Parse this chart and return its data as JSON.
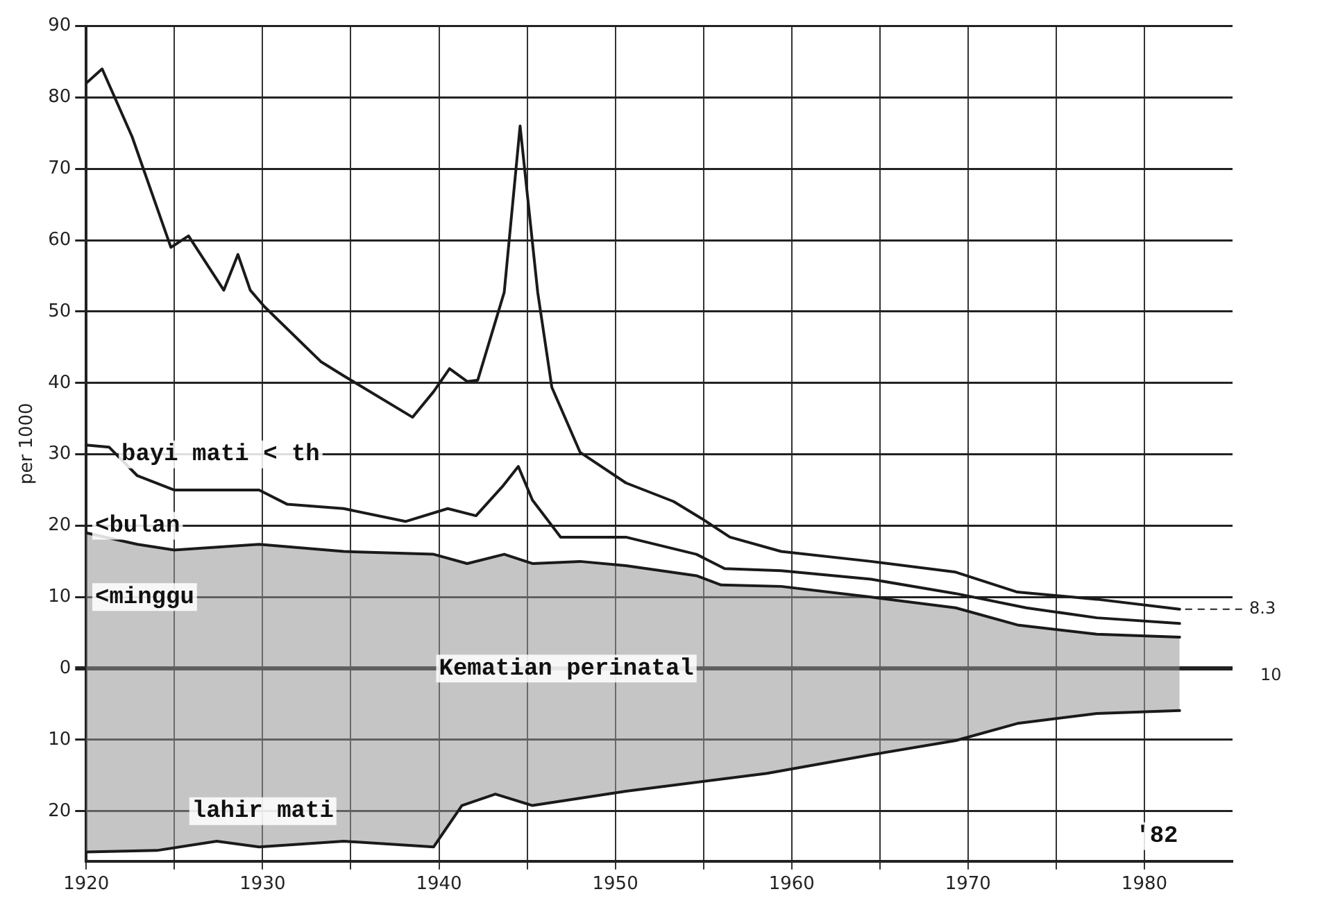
{
  "chart_data": {
    "type": "line",
    "ylabel": "per 1000",
    "xlim": [
      1920,
      1985
    ],
    "ylim": [
      -27,
      90
    ],
    "xticks": [
      1920,
      {
        "value": 1925,
        "label": null
      },
      1930,
      {
        "value": 1935,
        "label": null
      },
      1940,
      {
        "value": 1945,
        "label": null
      },
      1950,
      {
        "value": 1955,
        "label": null
      },
      1960,
      {
        "value": 1965,
        "label": null
      },
      1970,
      {
        "value": 1975,
        "label": null
      },
      1980
    ],
    "yticks": [
      {
        "value": -20,
        "label": "20"
      },
      {
        "value": -10,
        "label": "10"
      },
      0,
      10,
      20,
      30,
      40,
      50,
      60,
      70,
      80,
      90
    ],
    "grid": true,
    "marker": "none",
    "line_style": "solid",
    "series": [
      {
        "color": "#1a1a1a",
        "x": [
          1920,
          1920.9,
          1922.6,
          1924.8,
          1925.8,
          1927.8,
          1928.6,
          1929.3,
          1930.1,
          1933.3,
          1934.6,
          1938.5,
          1939.7,
          1940.6,
          1941.6,
          1942.2,
          1943.7,
          1944.6,
          1945.6,
          1946.4,
          1948,
          1950.6,
          1953.3,
          1954.9,
          1956.5,
          1959.4,
          1964.5,
          1969.3,
          1972.8,
          1977.3,
          1982
        ],
        "values": [
          82,
          84,
          74.5,
          59,
          60.6,
          53,
          58,
          53,
          50.7,
          43,
          41,
          35.2,
          38.8,
          42,
          40.2,
          40.4,
          52.7,
          76,
          52.7,
          39.4,
          30.3,
          26,
          23.4,
          21,
          18.4,
          16.4,
          15,
          13.5,
          10.7,
          9.7,
          8.3
        ]
      },
      {
        "color": "#1a1a1a",
        "x": [
          1920,
          1921.3,
          1922.9,
          1925,
          1929.8,
          1931.4,
          1934.6,
          1938.1,
          1940.5,
          1942.1,
          1943.6,
          1944.5,
          1945.3,
          1946.9,
          1950.6,
          1954.6,
          1956.2,
          1959.4,
          1964.5,
          1969.3,
          1973.3,
          1977.3,
          1982
        ],
        "values": [
          31.3,
          31,
          27,
          25,
          25,
          23,
          22.4,
          20.6,
          22.4,
          21.4,
          25.5,
          28.3,
          23.6,
          18.4,
          18.4,
          16,
          14,
          13.7,
          12.5,
          10.5,
          8.5,
          7.1,
          6.3
        ]
      },
      {
        "type": "area",
        "color": "#1a1a1a",
        "x": [
          1920,
          1922.9,
          1925,
          1929.8,
          1934.6,
          1939.7,
          1941.6,
          1943.7,
          1945.3,
          1948,
          1950.6,
          1954.6,
          1956,
          1959.4,
          1964.5,
          1969.3,
          1972.8,
          1977.3,
          1982
        ],
        "values": [
          19,
          17.4,
          16.6,
          17.4,
          16.4,
          16,
          14.7,
          16,
          14.7,
          15,
          14.4,
          13,
          11.7,
          11.5,
          10,
          8.5,
          6.1,
          4.8,
          4.4
        ]
      },
      {
        "type": "area",
        "color": "#1a1a1a",
        "x": [
          1920,
          1924,
          1927.4,
          1929.8,
          1934.6,
          1939.7,
          1941.3,
          1943.2,
          1945.3,
          1950.6,
          1958.6,
          1964.5,
          1969.3,
          1972.8,
          1977.3,
          1982
        ],
        "values": [
          -25.7,
          -25.5,
          -24.2,
          -25,
          -24.2,
          -25,
          -19.2,
          -17.6,
          -19.2,
          -17.2,
          -14.7,
          -12.1,
          -10.1,
          -7.7,
          -6.3,
          -5.9
        ]
      }
    ],
    "annotations": [
      "bayi mati < th",
      "<bulan",
      "<minggu",
      "Kematian perinatal",
      "lahir mati",
      "'82",
      "8.3",
      "10"
    ]
  }
}
